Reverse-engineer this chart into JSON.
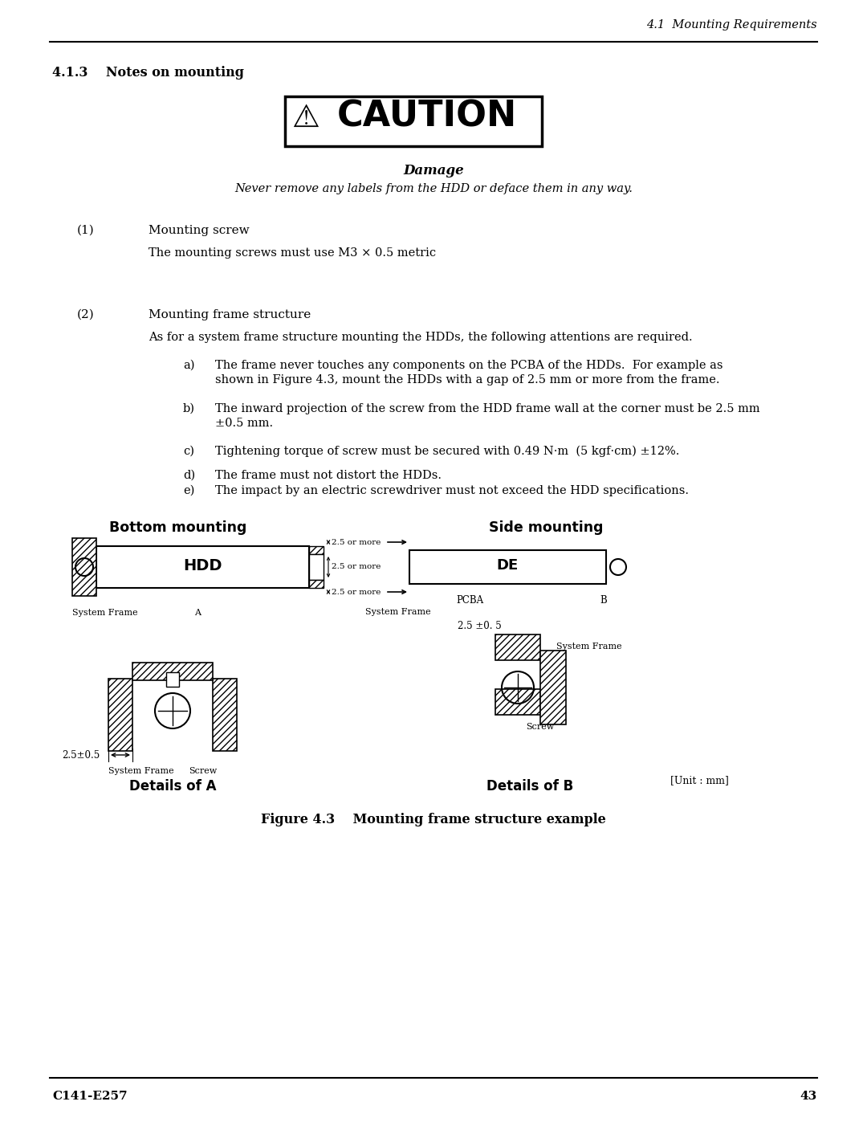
{
  "bg_color": "#ffffff",
  "header_text": "4.1  Mounting Requirements",
  "section_title": "4.1.3    Notes on mounting",
  "damage_title": "Damage",
  "damage_subtitle": "Never remove any labels from the HDD or deface them in any way.",
  "item1_num": "(1)",
  "item1_title": "Mounting screw",
  "item1_body": "The mounting screws must use M3 × 0.5 metric",
  "item2_num": "(2)",
  "item2_title": "Mounting frame structure",
  "item2_body": "As for a system frame structure mounting the HDDs, the following attentions are required.",
  "item_a_label": "a)",
  "item_a": "The frame never touches any components on the PCBA of the HDDs.  For example as\nshown in Figure 4.3, mount the HDDs with a gap of 2.5 mm or more from the frame.",
  "item_b_label": "b)",
  "item_b": "The inward projection of the screw from the HDD frame wall at the corner must be 2.5 mm\n±0.5 mm.",
  "item_c_label": "c)",
  "item_c": "Tightening torque of screw must be secured with 0.49 N·m  (5 kgf·cm) ±12%.",
  "item_d_label": "d)",
  "item_d": "The frame must not distort the HDDs.",
  "item_e_label": "e)",
  "item_e": "The impact by an electric screwdriver must not exceed the HDD specifications.",
  "fig_label": "Figure 4.3    Mounting frame structure example",
  "bottom_left": "C141-E257",
  "bottom_right": "43",
  "bottom_title_left": "Bottom mounting",
  "bottom_title_right": "Side mounting",
  "details_a": "Details of A",
  "details_b": "Details of B",
  "unit_label": "[Unit : mm]"
}
